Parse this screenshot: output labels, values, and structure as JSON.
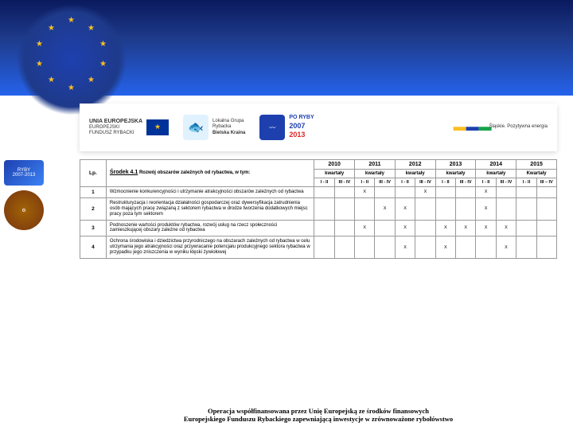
{
  "header": {
    "logos": {
      "eu_label1": "UNIA EUROPEJSKA",
      "eu_label2": "EUROPEJSKI",
      "eu_label3": "FUNDUSZ RYBACKI",
      "lgr1": "Lokalna Grupa",
      "lgr2": "Rybacka",
      "lgr3": "Bielska Kraina",
      "ryby1": "PO RYBY",
      "ryby2": "2007",
      "ryby3": "2013",
      "slaskie": "Śląskie. Pozytywna energia"
    }
  },
  "table": {
    "lp_header": "Lp.",
    "srodek_header_bold": "Środek 4.1",
    "srodek_header_rest": " Rozwój obszarów zależnych od rybactwa, w tym:",
    "years": [
      "2010",
      "2011",
      "2012",
      "2013",
      "2014",
      "2015"
    ],
    "kwartaly": "kwartały",
    "kwartaly_last": "Kwartały",
    "subcols": [
      "I - II",
      "III - IV"
    ],
    "last_sub2": "III – IV",
    "rows": [
      {
        "lp": "1",
        "desc": "Wzmocnienie konkurencyjności i utrzymanie atrakcyjności obszarów zależnych od rybactwa",
        "x": [
          0,
          0,
          1,
          0,
          0,
          1,
          0,
          0,
          1,
          0,
          0,
          0
        ]
      },
      {
        "lp": "2",
        "desc": "Restrukturyzacja i reorientacja działalności gospodarczej oraz dywersyfikacja zatrudnienia osób mających pracę związaną z sektorem rybactwa w drodze tworzenia dodatkowych miejsc pracy poza tym sektorem",
        "x": [
          0,
          0,
          0,
          1,
          1,
          0,
          0,
          0,
          1,
          0,
          0,
          0
        ]
      },
      {
        "lp": "3",
        "desc": "Podnoszenie wartości produktów rybactwa, rozwój usług na rzecz społeczności zamieszkującej obszary zależne od rybactwa",
        "x": [
          0,
          0,
          1,
          0,
          1,
          0,
          1,
          1,
          1,
          1,
          0,
          0
        ]
      },
      {
        "lp": "4",
        "desc": "Ochrona środowiska i dziedzictwa przyrodniczego na obszarach zależnych od rybactwa w celu utrzymania jego atrakcyjności oraz przywracanie potencjału produkcyjnego sektora rybactwa w przypadku jego zniszczenia w wyniku klęski żywiołowej",
        "x": [
          0,
          0,
          0,
          0,
          1,
          0,
          1,
          0,
          0,
          1,
          0,
          0
        ]
      }
    ]
  },
  "footer": {
    "line1": "Operacja współfinansowana przez Unię Europejską ze środków finansowych",
    "line2": "Europejskiego Funduszu Rybackiego zapewniającą inwestycje w zrównoważone rybołówstwo"
  },
  "colors": {
    "header_gradient_top": "#0a1a5e",
    "border": "#999999",
    "star": "#fbbf24"
  }
}
